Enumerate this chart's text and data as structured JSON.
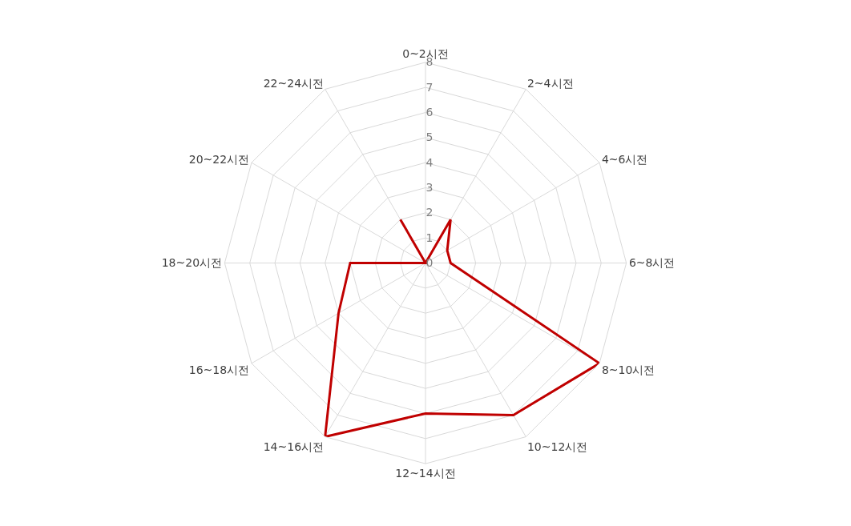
{
  "chart_data": {
    "type": "radar",
    "categories": [
      "0~2시전",
      "2~4시전",
      "4~6시전",
      "6~8시전",
      "8~10시전",
      "10~12시전",
      "12~14시전",
      "14~16시전",
      "16~18시전",
      "18~20시전",
      "20~22시전",
      "22~24시전"
    ],
    "series": [
      {
        "color": "#c00000",
        "values": [
          0,
          2,
          1,
          1,
          8,
          7,
          6,
          8,
          4,
          3,
          0,
          2
        ]
      }
    ],
    "ylim": [
      0,
      8
    ],
    "yticks": [
      0,
      1,
      2,
      3,
      4,
      5,
      6,
      7,
      8
    ],
    "grid": true,
    "marker": "none",
    "line_style": "solid"
  }
}
